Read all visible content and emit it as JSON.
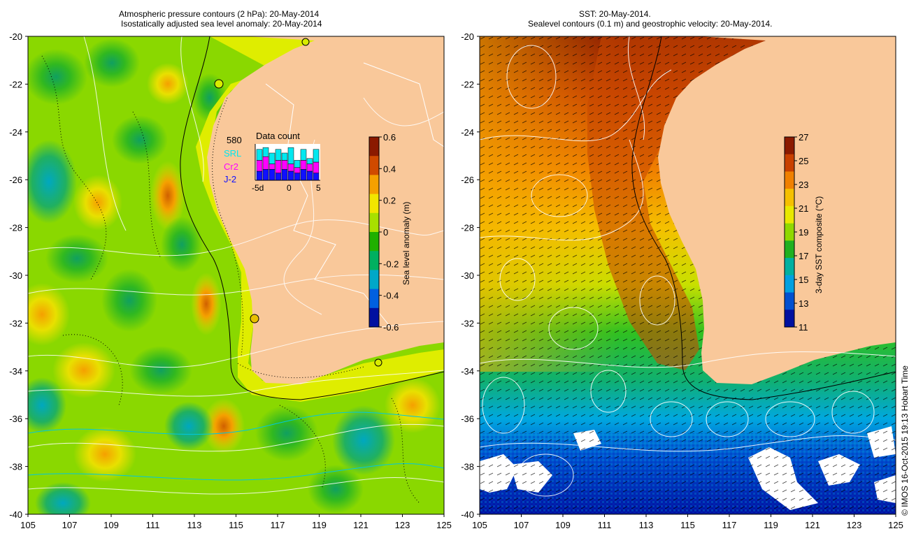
{
  "left_panel": {
    "title_line1": "Atmospheric pressure contours (2 hPa): 20-May-2014",
    "title_line2": "Isostatically adjusted sea level anomaly: 20-May-2014",
    "colorbar": {
      "label": "Sea level anomaly (m)",
      "ticks": [
        "0.6",
        "0.4",
        "0.2",
        "0",
        "-0.2",
        "-0.4",
        "-0.6"
      ],
      "colors": [
        "#8b1a00",
        "#d04a00",
        "#f5a000",
        "#f2e600",
        "#a8e000",
        "#20b000",
        "#00b060",
        "#00a8c8",
        "#0060e0",
        "#0010a0"
      ]
    },
    "data_count": {
      "title": "Data count",
      "total": "580",
      "missions": [
        {
          "name": "SRL",
          "color": "#00e8f0"
        },
        {
          "name": "Cr2",
          "color": "#ff00ff"
        },
        {
          "name": "J-2",
          "color": "#1010ff"
        }
      ],
      "xticks": [
        "-5d",
        "0",
        "5"
      ],
      "bars": [
        {
          "j2": 0.25,
          "cr2": 0.3,
          "srl": 0.3
        },
        {
          "j2": 0.3,
          "cr2": 0.35,
          "srl": 0.25
        },
        {
          "j2": 0.3,
          "cr2": 0.15,
          "srl": 0.3
        },
        {
          "j2": 0.2,
          "cr2": 0.35,
          "srl": 0.3
        },
        {
          "j2": 0.3,
          "cr2": 0.25,
          "srl": 0.2
        },
        {
          "j2": 0.25,
          "cr2": 0.2,
          "srl": 0.45
        },
        {
          "j2": 0.2,
          "cr2": 0.15,
          "srl": 0.2
        },
        {
          "j2": 0.3,
          "cr2": 0.25,
          "srl": 0.3
        },
        {
          "j2": 0.25,
          "cr2": 0.2,
          "srl": 0.15
        },
        {
          "j2": 0.2,
          "cr2": 0.3,
          "srl": 0.35
        }
      ]
    }
  },
  "right_panel": {
    "title_line1": "SST: 20-May-2014.",
    "title_line2": "Sealevel contours (0.1 m) and geostrophic velocity: 20-May-2014.",
    "colorbar": {
      "label": "3-day SST composite (°C)",
      "ticks": [
        "27",
        "25",
        "23",
        "21",
        "19",
        "17",
        "15",
        "13",
        "11"
      ],
      "colors": [
        "#8b1a00",
        "#c84000",
        "#f08000",
        "#f5c000",
        "#e8e800",
        "#90d800",
        "#20b020",
        "#00b0a0",
        "#00a0e0",
        "#0050d0",
        "#0010a0"
      ]
    }
  },
  "axes": {
    "yticks": [
      "-20",
      "-22",
      "-24",
      "-26",
      "-28",
      "-30",
      "-32",
      "-34",
      "-36",
      "-38",
      "-40"
    ],
    "xticks": [
      "105",
      "107",
      "109",
      "111",
      "113",
      "115",
      "117",
      "119",
      "121",
      "123",
      "125"
    ]
  },
  "credit": "© IMOS 16-Oct-2015 19:13 Hobart Time",
  "colors": {
    "land": "#f9c89a",
    "ocean_green": "#6ad600",
    "ocean_yellow": "#d8ec00",
    "coast_band": "#e8f000"
  }
}
